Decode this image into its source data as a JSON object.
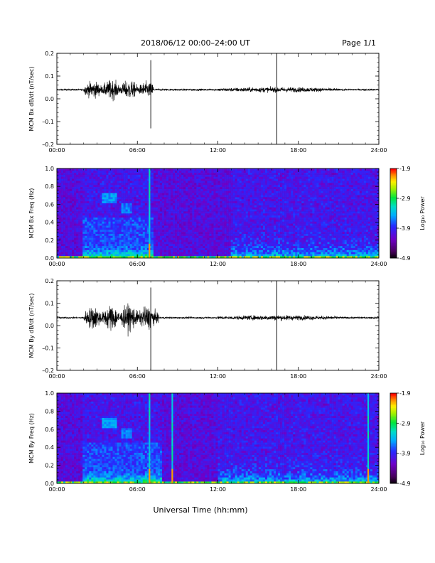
{
  "header": {
    "title": "2018/06/12  00:00–24:00 UT",
    "page": "Page 1/1"
  },
  "x_axis_title": "Universal Time (hh:mm)",
  "chart_data": [
    {
      "type": "line",
      "ylabel": "MCM Bx dB/dt (nT/sec)",
      "xlim": [
        0,
        24
      ],
      "ylim": [
        -0.2,
        0.2
      ],
      "x_ticks": [
        "00:00",
        "06:00",
        "12:00",
        "18:00",
        "24:00"
      ],
      "y_ticks": [
        "0.2",
        "0.1",
        "0.0",
        "–0.1",
        "–0.2"
      ],
      "baseline": 0.04,
      "spikes": [
        {
          "x": 7.0,
          "y_min": -0.13,
          "y_max": 0.17
        },
        {
          "x": 16.4,
          "y_min": -0.2,
          "y_max": 0.2
        }
      ],
      "active_intervals": [
        {
          "start": 2.0,
          "end": 7.2,
          "peak_amplitude": 0.08
        }
      ]
    },
    {
      "type": "heatmap",
      "ylabel": "MCM Bx Freq (Hz)",
      "xlim": [
        0,
        24
      ],
      "ylim": [
        0,
        1.0
      ],
      "x_ticks": [
        "00:00",
        "06:00",
        "12:00",
        "18:00",
        "24:00"
      ],
      "y_ticks": [
        "1.0",
        "0.8",
        "0.6",
        "0.4",
        "0.2",
        "0.0"
      ],
      "colorbar": {
        "label": "Log₁₀ Power",
        "range": [
          -4.9,
          -1.9
        ],
        "ticks": [
          "-1.9",
          "-2.9",
          "-3.9",
          "-4.9"
        ]
      },
      "features": [
        {
          "desc": "broadband line",
          "x": 6.9
        },
        {
          "desc": "enhanced low-frequency power",
          "start": 2.0,
          "end": 7.2
        },
        {
          "desc": "enhanced low-frequency power",
          "start": 13.0,
          "end": 24.0
        }
      ]
    },
    {
      "type": "line",
      "ylabel": "MCM By dB/dt (nT/sec)",
      "xlim": [
        0,
        24
      ],
      "ylim": [
        -0.2,
        0.2
      ],
      "x_ticks": [
        "00:00",
        "06:00",
        "12:00",
        "18:00",
        "24:00"
      ],
      "y_ticks": [
        "0.2",
        "0.1",
        "0.0",
        "–0.1",
        "–0.2"
      ],
      "baseline": 0.035,
      "spikes": [
        {
          "x": 7.0,
          "y_min": -0.2,
          "y_max": 0.17
        },
        {
          "x": 16.4,
          "y_min": -0.2,
          "y_max": 0.2
        }
      ],
      "active_intervals": [
        {
          "start": 2.0,
          "end": 7.6,
          "peak_amplitude": 0.11
        }
      ]
    },
    {
      "type": "heatmap",
      "ylabel": "MCM By Freq (Hz)",
      "xlim": [
        0,
        24
      ],
      "ylim": [
        0,
        1.0
      ],
      "x_ticks": [
        "00:00",
        "06:00",
        "12:00",
        "18:00",
        "24:00"
      ],
      "y_ticks": [
        "1.0",
        "0.8",
        "0.6",
        "0.4",
        "0.2",
        "0.0"
      ],
      "colorbar": {
        "label": "Log₁₀ Power",
        "range": [
          -4.9,
          -1.9
        ],
        "ticks": [
          "-1.9",
          "-2.9",
          "-3.9",
          "-4.9"
        ]
      },
      "features": [
        {
          "desc": "broadband line",
          "x": 6.9
        },
        {
          "desc": "broadband line",
          "x": 8.6
        },
        {
          "desc": "broadband line",
          "x": 23.2
        },
        {
          "desc": "enhanced low-frequency power",
          "start": 2.0,
          "end": 7.8
        },
        {
          "desc": "enhanced low-frequency power",
          "start": 12.0,
          "end": 24.0
        }
      ]
    }
  ]
}
